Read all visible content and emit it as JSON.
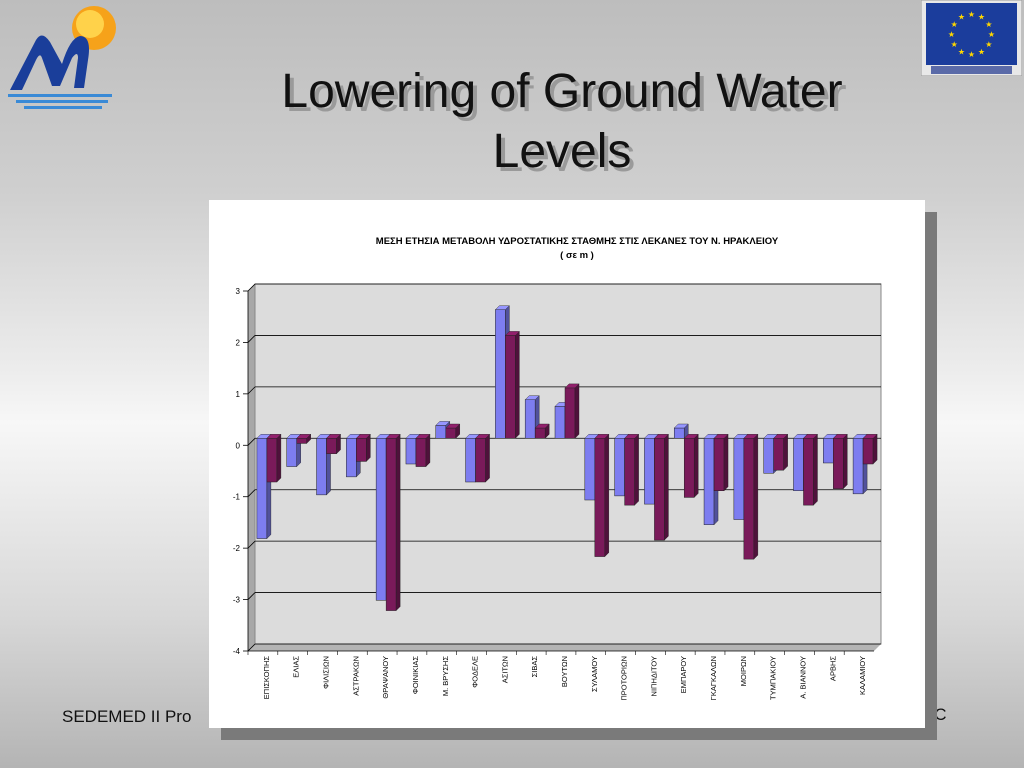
{
  "slide": {
    "title_line1": "Lowering of Ground Water",
    "title_line2": "Levels",
    "footer_left": "SEDEMED II Pro",
    "footer_right": "CC"
  },
  "logos": {
    "left_icon": "mountain-sun-logo-icon",
    "right_icon": "eu-flag-icon",
    "right_caption": "EUROPEAN UNION"
  },
  "colors": {
    "series1": "#7d7df0",
    "series2": "#7a1a5a",
    "plot_bg": "#dcdcdc"
  },
  "chart_data": {
    "type": "bar",
    "title": "ΜΕΣΗ ΕΤΗΣΙΑ ΜΕΤΑΒΟΛΗ ΥΔΡΟΣΤΑΤΙΚΗΣ ΣΤΑΘΜΗΣ ΣΤΙΣ ΛΕΚΑΝΕΣ ΤΟΥ Ν. ΗΡΑΚΛΕΙΟΥ",
    "subtitle": "( σε m )",
    "xlabel": "",
    "ylabel": "",
    "ylim": [
      -4,
      3
    ],
    "yticks": [
      "3",
      "2",
      "1",
      "0",
      "-1",
      "-2",
      "-3",
      "-4"
    ],
    "grid": true,
    "style": "3d",
    "categories": [
      "ΕΠΙΣΚΟΠΗΣ",
      "ΕΛΙΑΣ",
      "ΦΙΛΙΣΙΩΝ",
      "ΑΣΤΡΑΚΩΝ",
      "ΘΡΑΨΑΝΟΥ",
      "ΦΟΙΝΙΚΙΑΣ",
      "Μ. ΒΡΥΣΗΣ",
      "ΦΟΔΕΛΕ",
      "ΑΣΙΤΩΝ",
      "ΣΙΒΑΣ",
      "ΒΟΥΤΩΝ",
      "ΣΥΛΑΜΟΥ",
      "ΠΡΟΤΟΡΙΩΝ",
      "ΝΙΠΗΔΙΤΟΥ",
      "ΕΜΠΑΡΟΥ",
      "ΓΚΑΓΚΑΛΩΝ",
      "ΜΟΙΡΩΝ",
      "ΤΥΜΠΑΚΙΟΥ",
      "Α. ΒΙΑΝΝΟΥ",
      "ΑΡΒΗΣ",
      "ΚΑΛΑΜΙΟΥ"
    ],
    "series": [
      {
        "values": [
          -1.95,
          -0.55,
          -1.1,
          -0.75,
          -3.15,
          -0.5,
          0.25,
          -0.85,
          2.5,
          0.75,
          0.62,
          -1.2,
          -1.12,
          -1.28,
          0.2,
          -1.68,
          -1.58,
          -0.68,
          -1.02,
          -0.48,
          -1.08
        ]
      },
      {
        "values": [
          -0.85,
          -0.1,
          -0.3,
          -0.45,
          -3.35,
          -0.55,
          0.2,
          -0.85,
          2.0,
          0.2,
          0.98,
          -2.3,
          -1.3,
          -1.98,
          -1.15,
          -1.02,
          -2.35,
          -0.62,
          -1.3,
          -0.98,
          -0.5
        ]
      }
    ]
  }
}
